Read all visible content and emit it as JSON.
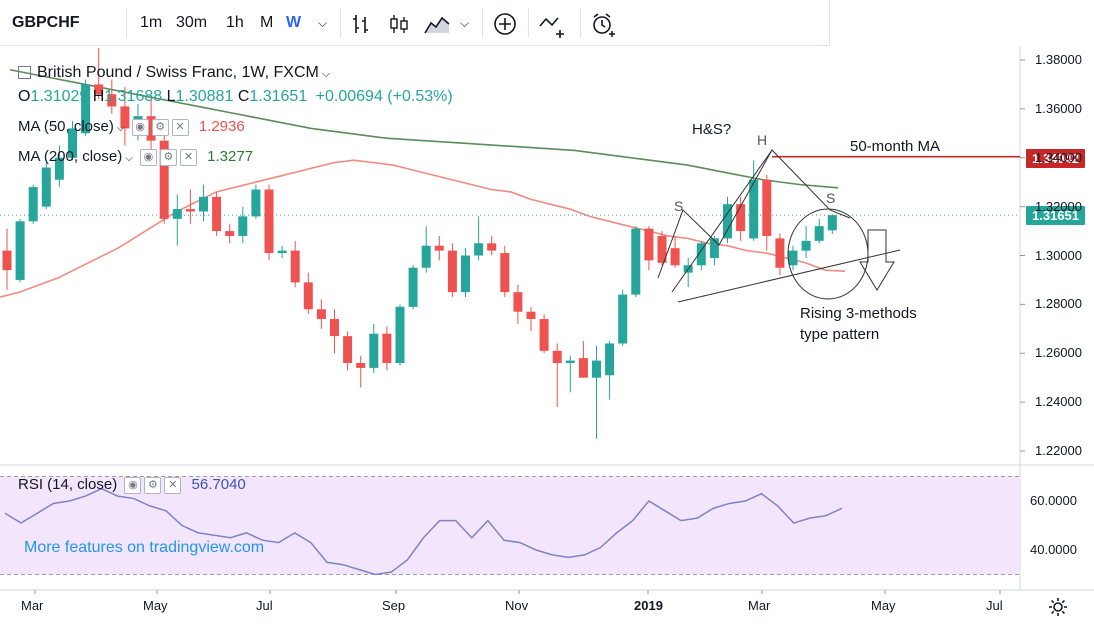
{
  "toolbar": {
    "symbol": "GBPCHF",
    "intervals": [
      "1m",
      "30m",
      "1h",
      "M",
      "W"
    ],
    "active_interval": "W",
    "chevron_icon": "chevron-down-icon",
    "icons": [
      "bar-style-icon",
      "candles-icon",
      "area-chart-icon",
      "chevron-down-icon",
      "add-indicator-icon",
      "compare-icon",
      "alert-clock-icon"
    ]
  },
  "legend": {
    "title": "British Pound / Swiss Franc, 1W, FXCM",
    "open_label": "O",
    "open": "1.31029",
    "high_label": "H",
    "high": "1.31688",
    "low_label": "L",
    "low": "1.30881",
    "close_label": "C",
    "close": "1.31651",
    "change": "+0.00694 (+0.53%)",
    "ma50_label": "MA (50, close)",
    "ma50_value": "1.2936",
    "ma200_label": "MA (200, close)",
    "ma200_value": "1.3277",
    "rsi_label": "RSI (14, close)",
    "rsi_value": "56.7040"
  },
  "annotations": {
    "hs_question": "H&S?",
    "head": "H",
    "left_shoulder": "S",
    "right_shoulder": "S",
    "ma_label": "50-month MA",
    "pattern_line1": "Rising 3-methods",
    "pattern_line2": "type pattern"
  },
  "watermark": "More features on tradingview.com",
  "price_tags": {
    "ma_level": "1.34042",
    "last_price": "1.31651"
  },
  "colors": {
    "up": "#26a69a",
    "down": "#ef5350",
    "ma50": "#f28b82",
    "ma200": "#5b8c5a",
    "rsi_line": "#7b83c9",
    "rsi_band": "#f3e5fb",
    "ma_level_line": "#c62828",
    "last_price": "#26a69a"
  },
  "chart_data": {
    "type": "candlestick",
    "price_axis_ticks": [
      "1.38000",
      "1.36000",
      "1.34000",
      "1.32000",
      "1.30000",
      "1.28000",
      "1.26000",
      "1.24000",
      "1.22000"
    ],
    "ylim": [
      1.214,
      1.388
    ],
    "x_axis_ticks": [
      "Mar",
      "May",
      "Jul",
      "Sep",
      "Nov",
      "2019",
      "Mar",
      "May",
      "Jul"
    ],
    "rsi_axis_ticks": [
      "60.0000",
      "40.0000"
    ],
    "rsi_ylim": [
      28,
      76
    ],
    "rsi_band": [
      30,
      70
    ],
    "candles": [
      {
        "o": 1.302,
        "h": 1.311,
        "l": 1.286,
        "c": 1.294
      },
      {
        "o": 1.29,
        "h": 1.315,
        "l": 1.289,
        "c": 1.314
      },
      {
        "o": 1.314,
        "h": 1.329,
        "l": 1.313,
        "c": 1.328
      },
      {
        "o": 1.32,
        "h": 1.338,
        "l": 1.319,
        "c": 1.336
      },
      {
        "o": 1.331,
        "h": 1.345,
        "l": 1.328,
        "c": 1.34
      },
      {
        "o": 1.34,
        "h": 1.355,
        "l": 1.339,
        "c": 1.352
      },
      {
        "o": 1.35,
        "h": 1.372,
        "l": 1.349,
        "c": 1.37
      },
      {
        "o": 1.37,
        "h": 1.385,
        "l": 1.364,
        "c": 1.366
      },
      {
        "o": 1.366,
        "h": 1.372,
        "l": 1.358,
        "c": 1.361
      },
      {
        "o": 1.361,
        "h": 1.369,
        "l": 1.345,
        "c": 1.352
      },
      {
        "o": 1.352,
        "h": 1.362,
        "l": 1.347,
        "c": 1.357
      },
      {
        "o": 1.357,
        "h": 1.364,
        "l": 1.343,
        "c": 1.347
      },
      {
        "o": 1.347,
        "h": 1.35,
        "l": 1.313,
        "c": 1.315
      },
      {
        "o": 1.315,
        "h": 1.325,
        "l": 1.304,
        "c": 1.319
      },
      {
        "o": 1.319,
        "h": 1.327,
        "l": 1.313,
        "c": 1.318
      },
      {
        "o": 1.318,
        "h": 1.329,
        "l": 1.314,
        "c": 1.324
      },
      {
        "o": 1.324,
        "h": 1.326,
        "l": 1.308,
        "c": 1.31
      },
      {
        "o": 1.31,
        "h": 1.313,
        "l": 1.305,
        "c": 1.308
      },
      {
        "o": 1.308,
        "h": 1.32,
        "l": 1.305,
        "c": 1.316
      },
      {
        "o": 1.316,
        "h": 1.329,
        "l": 1.315,
        "c": 1.327
      },
      {
        "o": 1.327,
        "h": 1.329,
        "l": 1.298,
        "c": 1.301
      },
      {
        "o": 1.301,
        "h": 1.304,
        "l": 1.299,
        "c": 1.302
      },
      {
        "o": 1.302,
        "h": 1.306,
        "l": 1.287,
        "c": 1.289
      },
      {
        "o": 1.289,
        "h": 1.293,
        "l": 1.276,
        "c": 1.278
      },
      {
        "o": 1.278,
        "h": 1.282,
        "l": 1.27,
        "c": 1.274
      },
      {
        "o": 1.274,
        "h": 1.278,
        "l": 1.26,
        "c": 1.267
      },
      {
        "o": 1.267,
        "h": 1.269,
        "l": 1.253,
        "c": 1.256
      },
      {
        "o": 1.256,
        "h": 1.259,
        "l": 1.246,
        "c": 1.254
      },
      {
        "o": 1.254,
        "h": 1.272,
        "l": 1.252,
        "c": 1.268
      },
      {
        "o": 1.268,
        "h": 1.271,
        "l": 1.253,
        "c": 1.256
      },
      {
        "o": 1.256,
        "h": 1.28,
        "l": 1.255,
        "c": 1.279
      },
      {
        "o": 1.279,
        "h": 1.296,
        "l": 1.278,
        "c": 1.295
      },
      {
        "o": 1.295,
        "h": 1.312,
        "l": 1.293,
        "c": 1.304
      },
      {
        "o": 1.304,
        "h": 1.308,
        "l": 1.298,
        "c": 1.302
      },
      {
        "o": 1.302,
        "h": 1.305,
        "l": 1.283,
        "c": 1.285
      },
      {
        "o": 1.285,
        "h": 1.303,
        "l": 1.283,
        "c": 1.3
      },
      {
        "o": 1.3,
        "h": 1.316,
        "l": 1.298,
        "c": 1.305
      },
      {
        "o": 1.305,
        "h": 1.308,
        "l": 1.3,
        "c": 1.302
      },
      {
        "o": 1.301,
        "h": 1.304,
        "l": 1.283,
        "c": 1.285
      },
      {
        "o": 1.285,
        "h": 1.288,
        "l": 1.272,
        "c": 1.277
      },
      {
        "o": 1.277,
        "h": 1.279,
        "l": 1.269,
        "c": 1.274
      },
      {
        "o": 1.274,
        "h": 1.276,
        "l": 1.26,
        "c": 1.261
      },
      {
        "o": 1.261,
        "h": 1.264,
        "l": 1.238,
        "c": 1.256
      },
      {
        "o": 1.256,
        "h": 1.259,
        "l": 1.244,
        "c": 1.257
      },
      {
        "o": 1.258,
        "h": 1.265,
        "l": 1.25,
        "c": 1.25
      },
      {
        "o": 1.25,
        "h": 1.263,
        "l": 1.225,
        "c": 1.257
      },
      {
        "o": 1.251,
        "h": 1.265,
        "l": 1.241,
        "c": 1.264
      },
      {
        "o": 1.264,
        "h": 1.286,
        "l": 1.263,
        "c": 1.284
      },
      {
        "o": 1.284,
        "h": 1.312,
        "l": 1.283,
        "c": 1.311
      },
      {
        "o": 1.311,
        "h": 1.312,
        "l": 1.294,
        "c": 1.298
      },
      {
        "o": 1.308,
        "h": 1.31,
        "l": 1.296,
        "c": 1.297
      },
      {
        "o": 1.303,
        "h": 1.308,
        "l": 1.295,
        "c": 1.296
      },
      {
        "o": 1.293,
        "h": 1.299,
        "l": 1.287,
        "c": 1.296
      },
      {
        "o": 1.296,
        "h": 1.306,
        "l": 1.294,
        "c": 1.305
      },
      {
        "o": 1.299,
        "h": 1.308,
        "l": 1.296,
        "c": 1.307
      },
      {
        "o": 1.307,
        "h": 1.324,
        "l": 1.305,
        "c": 1.321
      },
      {
        "o": 1.321,
        "h": 1.324,
        "l": 1.306,
        "c": 1.31
      },
      {
        "o": 1.307,
        "h": 1.339,
        "l": 1.306,
        "c": 1.331
      },
      {
        "o": 1.331,
        "h": 1.333,
        "l": 1.302,
        "c": 1.308
      },
      {
        "o": 1.307,
        "h": 1.309,
        "l": 1.292,
        "c": 1.295
      },
      {
        "o": 1.296,
        "h": 1.304,
        "l": 1.294,
        "c": 1.302
      },
      {
        "o": 1.302,
        "h": 1.312,
        "l": 1.299,
        "c": 1.306
      },
      {
        "o": 1.306,
        "h": 1.315,
        "l": 1.305,
        "c": 1.312
      },
      {
        "o": 1.3103,
        "h": 1.3169,
        "l": 1.3088,
        "c": 1.3165
      }
    ],
    "ma50": [
      1.283,
      1.285,
      1.288,
      1.291,
      1.295,
      1.299,
      1.303,
      1.308,
      1.313,
      1.318,
      1.322,
      1.326,
      1.328,
      1.33,
      1.332,
      1.334,
      1.336,
      1.338,
      1.339,
      1.338,
      1.337,
      1.335,
      1.333,
      1.331,
      1.329,
      1.327,
      1.326,
      1.323,
      1.321,
      1.319,
      1.316,
      1.314,
      1.312,
      1.31,
      1.308,
      1.307,
      1.305,
      1.304,
      1.302,
      1.301,
      1.299,
      1.297,
      1.294,
      1.2936
    ],
    "ma200": [
      1.376,
      1.373,
      1.37,
      1.367,
      1.364,
      1.361,
      1.358,
      1.355,
      1.352,
      1.35,
      1.348,
      1.347,
      1.346,
      1.345,
      1.344,
      1.343,
      1.341,
      1.339,
      1.337,
      1.334,
      1.331,
      1.329,
      1.3277
    ],
    "rsi": [
      55,
      51,
      55,
      59,
      60,
      62,
      65,
      62,
      61,
      58,
      56,
      50,
      47,
      46,
      45,
      47,
      44,
      43,
      47,
      43,
      35,
      34,
      32,
      30,
      31,
      36,
      45,
      52,
      52,
      45,
      52,
      44,
      43,
      40,
      38,
      37,
      38,
      41,
      47,
      52,
      60,
      56,
      52,
      53,
      57,
      59,
      60,
      63,
      58,
      51,
      53,
      54,
      57
    ]
  }
}
